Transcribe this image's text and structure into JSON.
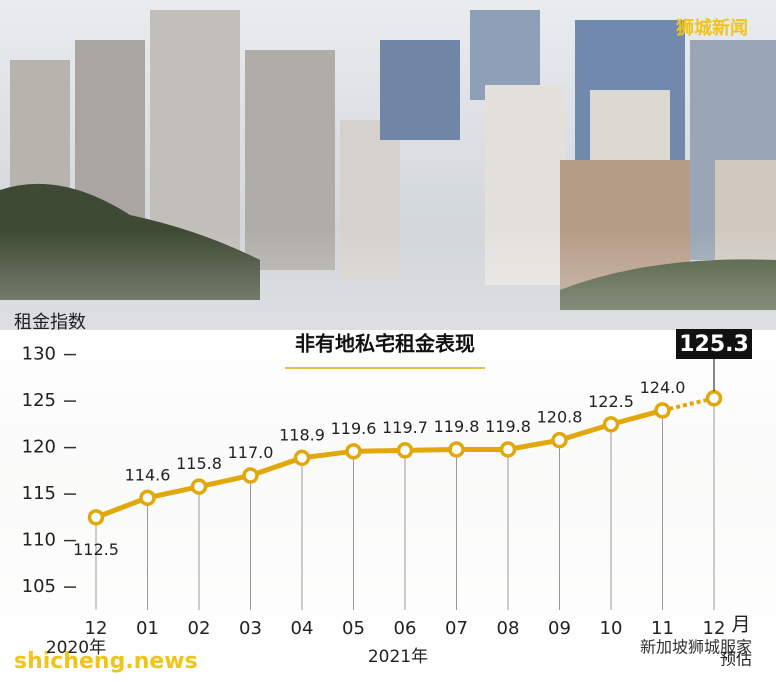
{
  "chart_data": {
    "type": "line",
    "title": "非有地私宅租金表现",
    "y_label": "租金指数",
    "categories": [
      "12",
      "01",
      "02",
      "03",
      "04",
      "05",
      "06",
      "07",
      "08",
      "09",
      "10",
      "11",
      "12"
    ],
    "x_unit": "月",
    "year_labels": [
      "2020年",
      "2021年"
    ],
    "forecast_label": "预估",
    "values": [
      112.5,
      114.6,
      115.8,
      117.0,
      118.9,
      119.6,
      119.7,
      119.8,
      119.8,
      120.8,
      122.5,
      124.0,
      125.3
    ],
    "value_labels": [
      "112.5",
      "114.6",
      "115.8",
      "117.0",
      "118.9",
      "119.6",
      "119.7",
      "119.8",
      "119.8",
      "120.8",
      "122.5",
      "124.0",
      "125.3"
    ],
    "color": "#e0a80a",
    "ylim": [
      102,
      132
    ],
    "yticks": [
      105,
      110,
      115,
      120,
      125,
      130
    ],
    "watermarks": [
      "狮城新闻",
      "shicheng.news",
      "新加坡狮城服家"
    ]
  }
}
